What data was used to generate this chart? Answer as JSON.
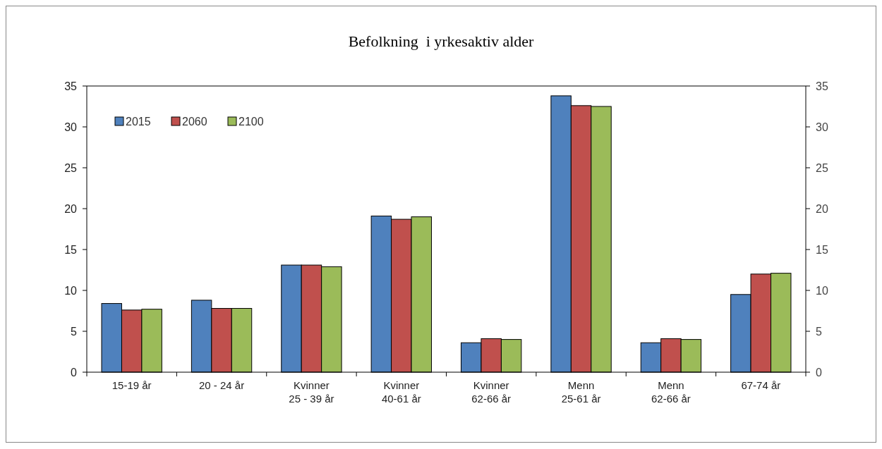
{
  "chart_data": {
    "type": "bar",
    "title": "Befolkning  i yrkesaktiv alder",
    "categories": [
      "15-19 år",
      "20 - 24 år",
      "Kvinner\n25 - 39 år",
      "Kvinner\n40-61 år",
      "Kvinner\n62-66 år",
      "Menn\n25-61 år",
      "Menn\n62-66 år",
      "67-74 år"
    ],
    "series": [
      {
        "name": "2015",
        "color": "#4f81bd",
        "values": [
          8.4,
          8.8,
          13.1,
          19.1,
          3.6,
          33.8,
          3.6,
          9.5
        ]
      },
      {
        "name": "2060",
        "color": "#c0504d",
        "values": [
          7.6,
          7.8,
          13.1,
          18.7,
          4.1,
          32.6,
          4.1,
          12.0
        ]
      },
      {
        "name": "2100",
        "color": "#9bbb59",
        "values": [
          7.7,
          7.8,
          12.9,
          19.0,
          4.0,
          32.5,
          4.0,
          12.1
        ]
      }
    ],
    "ylim": [
      0,
      35
    ],
    "yticks": [
      0,
      5,
      10,
      15,
      20,
      25,
      30,
      35
    ],
    "y2lim": [
      0,
      35
    ],
    "y2ticks": [
      0,
      5,
      10,
      15,
      20,
      25,
      30,
      35
    ],
    "legend": "top left",
    "grid": false
  }
}
